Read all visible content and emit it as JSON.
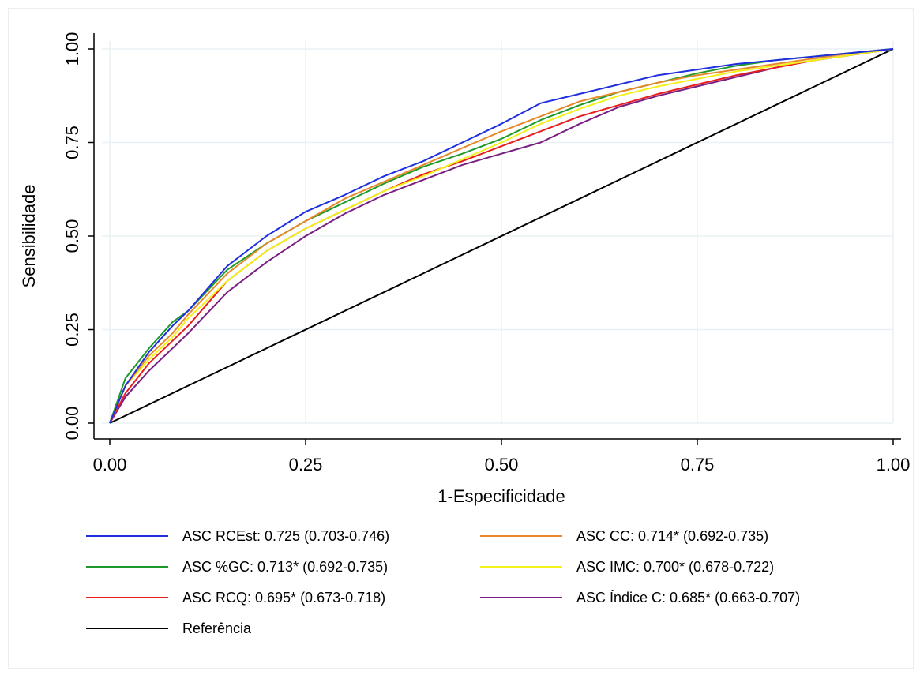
{
  "chart_data": {
    "type": "line",
    "xlabel": "1-Especificidade",
    "ylabel": "Sensibilidade",
    "xlim": [
      0,
      1
    ],
    "ylim": [
      0,
      1
    ],
    "x_ticks": [
      "0.00",
      "0.25",
      "0.50",
      "0.75",
      "1.00"
    ],
    "y_ticks": [
      "0.00",
      "0.25",
      "0.50",
      "0.75",
      "1.00"
    ],
    "grid": true,
    "legend_position": "bottom",
    "series": [
      {
        "name": "ASC RCEst: 0.725 (0.703-0.746)",
        "color": "#1f2fe0",
        "x": [
          0,
          0.02,
          0.05,
          0.08,
          0.1,
          0.15,
          0.2,
          0.25,
          0.3,
          0.35,
          0.4,
          0.45,
          0.5,
          0.55,
          0.6,
          0.65,
          0.7,
          0.75,
          0.8,
          0.85,
          0.9,
          0.95,
          1
        ],
        "y": [
          0,
          0.1,
          0.19,
          0.26,
          0.3,
          0.42,
          0.5,
          0.565,
          0.61,
          0.66,
          0.7,
          0.75,
          0.8,
          0.855,
          0.88,
          0.905,
          0.93,
          0.945,
          0.96,
          0.97,
          0.98,
          0.99,
          1
        ]
      },
      {
        "name": "ASC CC: 0.714* (0.692-0.735)",
        "color": "#e8882a",
        "x": [
          0,
          0.02,
          0.05,
          0.08,
          0.1,
          0.15,
          0.2,
          0.25,
          0.3,
          0.35,
          0.4,
          0.45,
          0.5,
          0.55,
          0.6,
          0.65,
          0.7,
          0.75,
          0.8,
          0.85,
          0.9,
          0.95,
          1
        ],
        "y": [
          0,
          0.1,
          0.18,
          0.24,
          0.29,
          0.4,
          0.48,
          0.54,
          0.6,
          0.645,
          0.69,
          0.735,
          0.78,
          0.82,
          0.86,
          0.885,
          0.91,
          0.93,
          0.945,
          0.96,
          0.975,
          0.99,
          1
        ]
      },
      {
        "name": "ASC %GC: 0.713* (0.692-0.735)",
        "color": "#1e9a2a",
        "x": [
          0,
          0.02,
          0.05,
          0.08,
          0.1,
          0.15,
          0.2,
          0.25,
          0.3,
          0.35,
          0.4,
          0.45,
          0.5,
          0.55,
          0.6,
          0.65,
          0.7,
          0.75,
          0.8,
          0.85,
          0.9,
          0.95,
          1
        ],
        "y": [
          0,
          0.12,
          0.2,
          0.27,
          0.3,
          0.41,
          0.48,
          0.54,
          0.59,
          0.64,
          0.685,
          0.72,
          0.76,
          0.81,
          0.85,
          0.885,
          0.91,
          0.935,
          0.955,
          0.97,
          0.98,
          0.99,
          1
        ]
      },
      {
        "name": "ASC IMC: 0.700* (0.678-0.722)",
        "color": "#f2f21a",
        "x": [
          0,
          0.02,
          0.05,
          0.08,
          0.1,
          0.15,
          0.2,
          0.25,
          0.3,
          0.35,
          0.4,
          0.45,
          0.5,
          0.55,
          0.6,
          0.65,
          0.7,
          0.75,
          0.8,
          0.85,
          0.9,
          0.95,
          1
        ],
        "y": [
          0,
          0.1,
          0.17,
          0.23,
          0.28,
          0.38,
          0.46,
          0.52,
          0.57,
          0.62,
          0.66,
          0.705,
          0.75,
          0.8,
          0.84,
          0.875,
          0.9,
          0.92,
          0.94,
          0.955,
          0.97,
          0.985,
          1
        ]
      },
      {
        "name": "ASC RCQ: 0.695* (0.673-0.718)",
        "color": "#e81e1e",
        "x": [
          0,
          0.02,
          0.05,
          0.08,
          0.1,
          0.15,
          0.2,
          0.25,
          0.3,
          0.35,
          0.4,
          0.45,
          0.5,
          0.55,
          0.6,
          0.65,
          0.7,
          0.75,
          0.8,
          0.85,
          0.9,
          0.95,
          1
        ],
        "y": [
          0,
          0.08,
          0.16,
          0.22,
          0.26,
          0.38,
          0.46,
          0.52,
          0.57,
          0.62,
          0.665,
          0.7,
          0.74,
          0.78,
          0.82,
          0.85,
          0.88,
          0.905,
          0.93,
          0.95,
          0.97,
          0.985,
          1
        ]
      },
      {
        "name": "ASC Índice C: 0.685* (0.663-0.707)",
        "color": "#7a1f82",
        "x": [
          0,
          0.02,
          0.05,
          0.08,
          0.1,
          0.15,
          0.2,
          0.25,
          0.3,
          0.35,
          0.4,
          0.45,
          0.5,
          0.55,
          0.6,
          0.65,
          0.7,
          0.75,
          0.8,
          0.85,
          0.9,
          0.95,
          1
        ],
        "y": [
          0,
          0.07,
          0.14,
          0.2,
          0.24,
          0.35,
          0.43,
          0.5,
          0.56,
          0.61,
          0.65,
          0.69,
          0.72,
          0.75,
          0.8,
          0.845,
          0.875,
          0.9,
          0.925,
          0.95,
          0.97,
          0.985,
          1
        ]
      },
      {
        "name": "Referência",
        "color": "#000000",
        "x": [
          0,
          1
        ],
        "y": [
          0,
          1
        ]
      }
    ]
  }
}
